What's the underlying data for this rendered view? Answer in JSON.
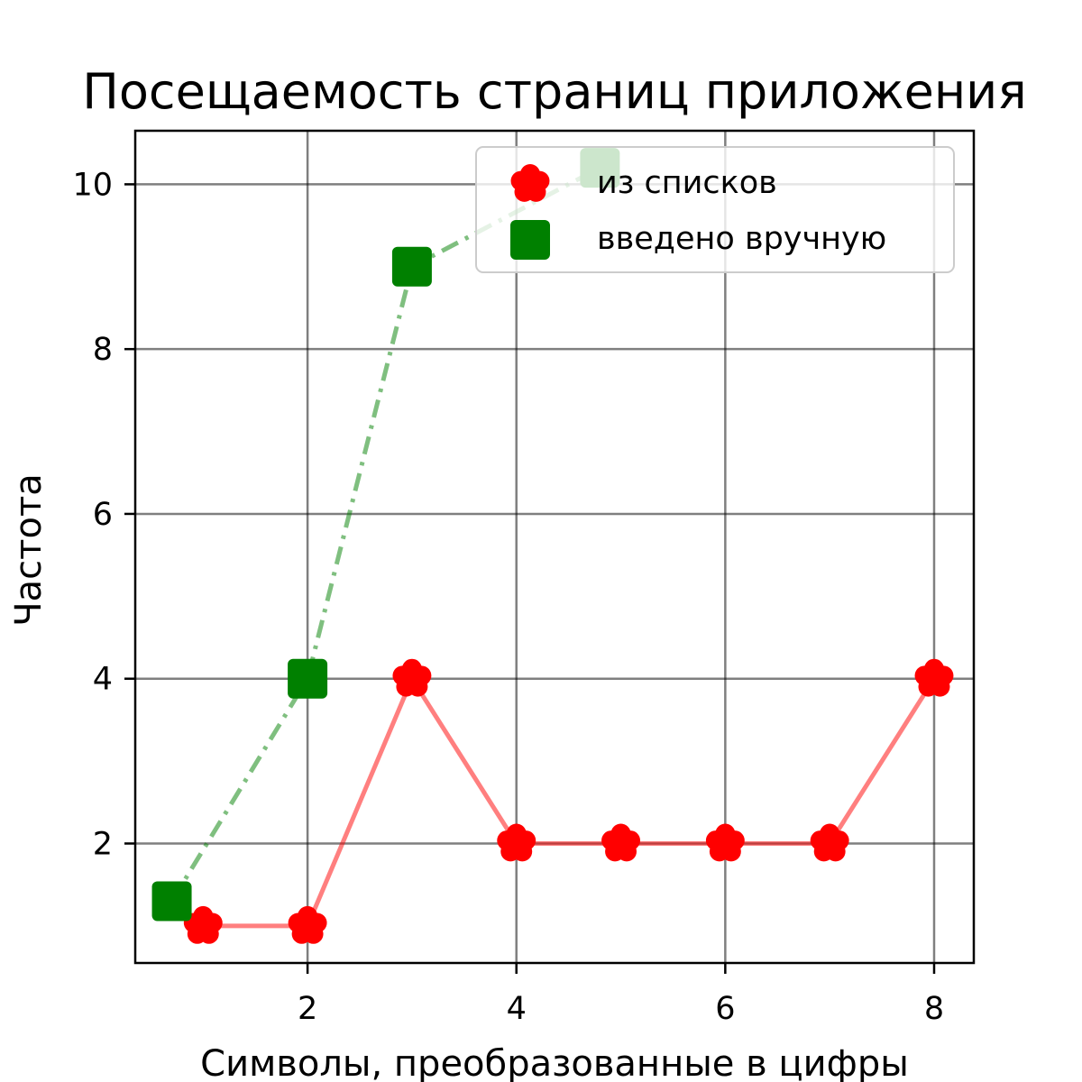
{
  "chart_data": {
    "type": "line",
    "title": "Посещаемость страниц приложения",
    "xlabel": "Символы, преобразованные в цифры",
    "ylabel": "Частота",
    "xlim": [
      0.35,
      8.38
    ],
    "ylim": [
      0.55,
      10.65
    ],
    "xticks": [
      2,
      4,
      6,
      8
    ],
    "yticks": [
      2,
      4,
      6,
      8,
      10
    ],
    "grid": true,
    "legend_position": "top-right",
    "series": [
      {
        "name": "из списков",
        "color": "#ff0000",
        "line_style": "solid",
        "marker": "flower",
        "x": [
          1,
          2,
          3,
          4,
          5,
          6,
          7,
          8
        ],
        "y": [
          1,
          1,
          4,
          2,
          2,
          2,
          2,
          4
        ]
      },
      {
        "name": "введено вручную",
        "color": "#008000",
        "line_style": "dashdot",
        "marker": "square",
        "x": [
          0.7,
          2,
          3,
          4.8
        ],
        "y": [
          1.3,
          4,
          9,
          10.2
        ]
      }
    ]
  }
}
